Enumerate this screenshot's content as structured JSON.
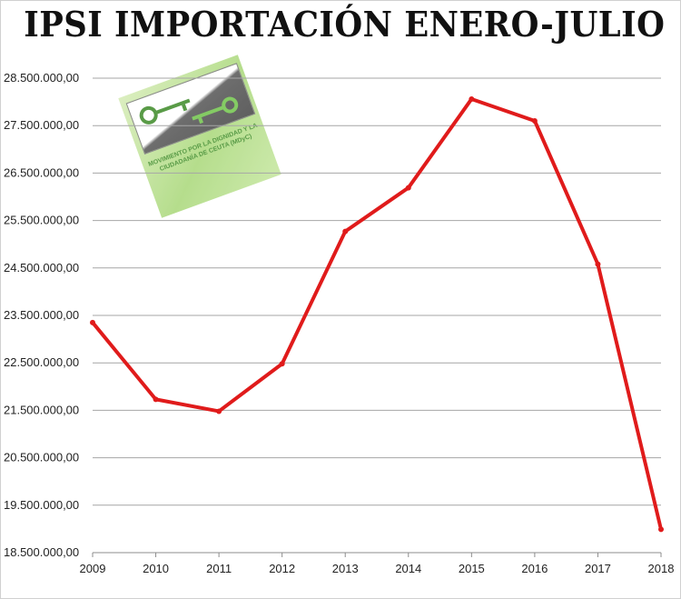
{
  "chart_data": {
    "type": "line",
    "title": "IPSI IMPORTACIÓN ENERO-JULIO",
    "xlabel": "",
    "ylabel": "",
    "ylim": [
      18500000,
      28500000
    ],
    "y_ticks": [
      18500000,
      19500000,
      20500000,
      21500000,
      22500000,
      23500000,
      24500000,
      25500000,
      26500000,
      27500000,
      28500000
    ],
    "y_tick_labels": [
      "18.500.000,00",
      "19.500.000,00",
      "20.500.000,00",
      "21.500.000,00",
      "22.500.000,00",
      "23.500.000,00",
      "24.500.000,00",
      "25.500.000,00",
      "26.500.000,00",
      "27.500.000,00",
      "28.500.000,00"
    ],
    "categories": [
      "2009",
      "2010",
      "2011",
      "2012",
      "2013",
      "2014",
      "2015",
      "2016",
      "2017",
      "2018"
    ],
    "series": [
      {
        "name": "IPSI Importación",
        "color": "#e01b1b",
        "values": [
          23350000,
          21730000,
          21480000,
          22480000,
          25270000,
          26190000,
          28060000,
          27600000,
          24580000,
          18990000
        ]
      }
    ],
    "grid": true
  },
  "watermark": {
    "icon": "key-icon",
    "text": "MOVIMIENTO POR LA DIGNIDAD Y LA CIUDADANÍA DE CEUTA (MDyC)"
  }
}
